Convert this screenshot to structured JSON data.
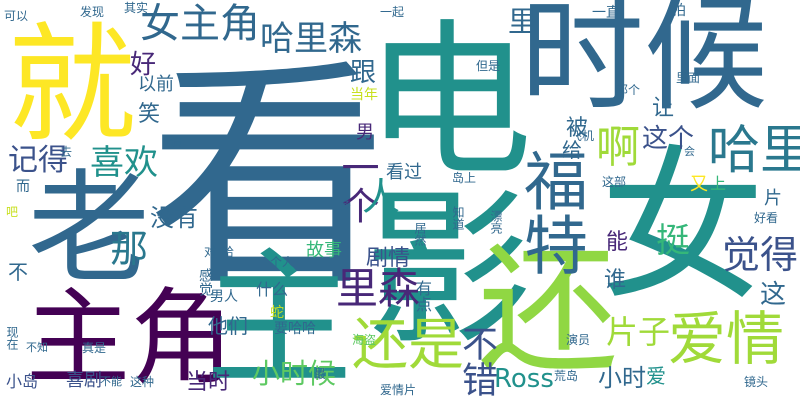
{
  "palette": {
    "purple": "#440154",
    "indigo": "#3b528b",
    "blue": "#31688e",
    "teal": "#21918c",
    "green": "#35b779",
    "lime": "#90d743",
    "yellow": "#fde725"
  },
  "words": [
    {
      "text": "看",
      "color": "#31688e"
    },
    {
      "text": "女",
      "color": "#21918c"
    },
    {
      "text": "时候",
      "color": "#31688e"
    },
    {
      "text": "就",
      "color": "#fde725"
    },
    {
      "text": "老",
      "color": "#31688e"
    },
    {
      "text": "主角",
      "color": "#440154"
    },
    {
      "text": "主",
      "color": "#21918c"
    },
    {
      "text": "电影",
      "color": "#21918c"
    },
    {
      "text": "还",
      "color": "#90d743"
    },
    {
      "text": "福特",
      "color": "#31688e"
    },
    {
      "text": "女主角",
      "color": "#31688e"
    },
    {
      "text": "哈里森",
      "color": "#31688e"
    },
    {
      "text": "爱情",
      "color": "#a0da39"
    },
    {
      "text": "还是",
      "color": "#a0da39"
    },
    {
      "text": "哈里",
      "color": "#2a788e"
    },
    {
      "text": "喜欢",
      "color": "#21918c"
    },
    {
      "text": "啊",
      "color": "#a0da39"
    },
    {
      "text": "觉得",
      "color": "#3b528b"
    },
    {
      "text": "里森",
      "color": "#482878"
    },
    {
      "text": "记得",
      "color": "#3b528b"
    },
    {
      "text": "片子",
      "color": "#a0da39"
    },
    {
      "text": "一个",
      "color": "#482878"
    },
    {
      "text": "人",
      "color": "#21918c"
    },
    {
      "text": "不错",
      "color": "#3b528b"
    },
    {
      "text": "小时候",
      "color": "#5ec962"
    },
    {
      "text": "那",
      "color": "#2a788e"
    },
    {
      "text": "挺",
      "color": "#35b779"
    },
    {
      "text": "这个",
      "color": "#3b528b"
    },
    {
      "text": "让",
      "color": "#31688e"
    },
    {
      "text": "没有",
      "color": "#31688e"
    },
    {
      "text": "剧情",
      "color": "#3b528b"
    },
    {
      "text": "里",
      "color": "#31688e"
    },
    {
      "text": "跟",
      "color": "#31688e"
    },
    {
      "text": "好",
      "color": "#482878"
    },
    {
      "text": "以前",
      "color": "#31688e"
    },
    {
      "text": "笑",
      "color": "#31688e"
    },
    {
      "text": "被",
      "color": "#31688e"
    },
    {
      "text": "给",
      "color": "#31688e"
    },
    {
      "text": "男",
      "color": "#482878"
    },
    {
      "text": "看过",
      "color": "#31688e"
    },
    {
      "text": "能",
      "color": "#482878"
    },
    {
      "text": "谁",
      "color": "#31688e"
    },
    {
      "text": "这",
      "color": "#31688e"
    },
    {
      "text": "Ross",
      "color": "#21918c"
    },
    {
      "text": "小时",
      "color": "#31688e"
    },
    {
      "text": "爱",
      "color": "#21918c"
    },
    {
      "text": "片",
      "color": "#31688e"
    },
    {
      "text": "又",
      "color": "#fde725"
    },
    {
      "text": "上",
      "color": "#35b779"
    },
    {
      "text": "当时",
      "color": "#482878"
    },
    {
      "text": "喜剧",
      "color": "#3b528b"
    },
    {
      "text": "小岛",
      "color": "#3b528b"
    },
    {
      "text": "他们",
      "color": "#31688e"
    },
    {
      "text": "故事",
      "color": "#35b779"
    },
    {
      "text": "什么",
      "color": "#31688e"
    },
    {
      "text": "男人",
      "color": "#31688e"
    },
    {
      "text": "有点",
      "color": "#31688e"
    },
    {
      "text": "要哈哈",
      "color": "#31688e"
    },
    {
      "text": "一直",
      "color": "#31688e"
    },
    {
      "text": "拍",
      "color": "#31688e"
    },
    {
      "text": "一起",
      "color": "#31688e"
    },
    {
      "text": "其实",
      "color": "#31688e"
    },
    {
      "text": "发现",
      "color": "#31688e"
    },
    {
      "text": "可以",
      "color": "#31688e"
    },
    {
      "text": "但是",
      "color": "#31688e"
    },
    {
      "text": "里面",
      "color": "#31688e"
    },
    {
      "text": "那个",
      "color": "#31688e"
    },
    {
      "text": "当年",
      "color": "#c8e020"
    },
    {
      "text": "飞机",
      "color": "#31688e"
    },
    {
      "text": "会",
      "color": "#31688e"
    },
    {
      "text": "这部",
      "color": "#31688e"
    },
    {
      "text": "岛上",
      "color": "#31688e"
    },
    {
      "text": "好看",
      "color": "#31688e"
    },
    {
      "text": "海盗",
      "color": "#5ec962"
    },
    {
      "text": "演员",
      "color": "#31688e"
    },
    {
      "text": "荒岛",
      "color": "#31688e"
    },
    {
      "text": "镜头",
      "color": "#31688e"
    },
    {
      "text": "爱情片",
      "color": "#31688e"
    },
    {
      "text": "最",
      "color": "#31688e"
    },
    {
      "text": "这种",
      "color": "#31688e"
    },
    {
      "text": "不能",
      "color": "#31688e"
    },
    {
      "text": "真是",
      "color": "#31688e"
    },
    {
      "text": "不知",
      "color": "#31688e"
    },
    {
      "text": "现在",
      "color": "#31688e"
    },
    {
      "text": "蛇",
      "color": "#c8e020"
    },
    {
      "text": "个人",
      "color": "#31688e"
    },
    {
      "text": "对",
      "color": "#31688e"
    },
    {
      "text": "哈",
      "color": "#31688e"
    },
    {
      "text": "感觉",
      "color": "#31688e"
    },
    {
      "text": "吧",
      "color": "#c8e020"
    },
    {
      "text": "多",
      "color": "#31688e"
    },
    {
      "text": "居然",
      "color": "#31688e"
    },
    {
      "text": "知道",
      "color": "#31688e"
    },
    {
      "text": "漂亮",
      "color": "#31688e"
    },
    {
      "text": "而",
      "color": "#31688e"
    },
    {
      "text": "去",
      "color": "#31688e"
    },
    {
      "text": "演",
      "color": "#31688e"
    },
    {
      "text": "不",
      "color": "#31688e"
    }
  ]
}
